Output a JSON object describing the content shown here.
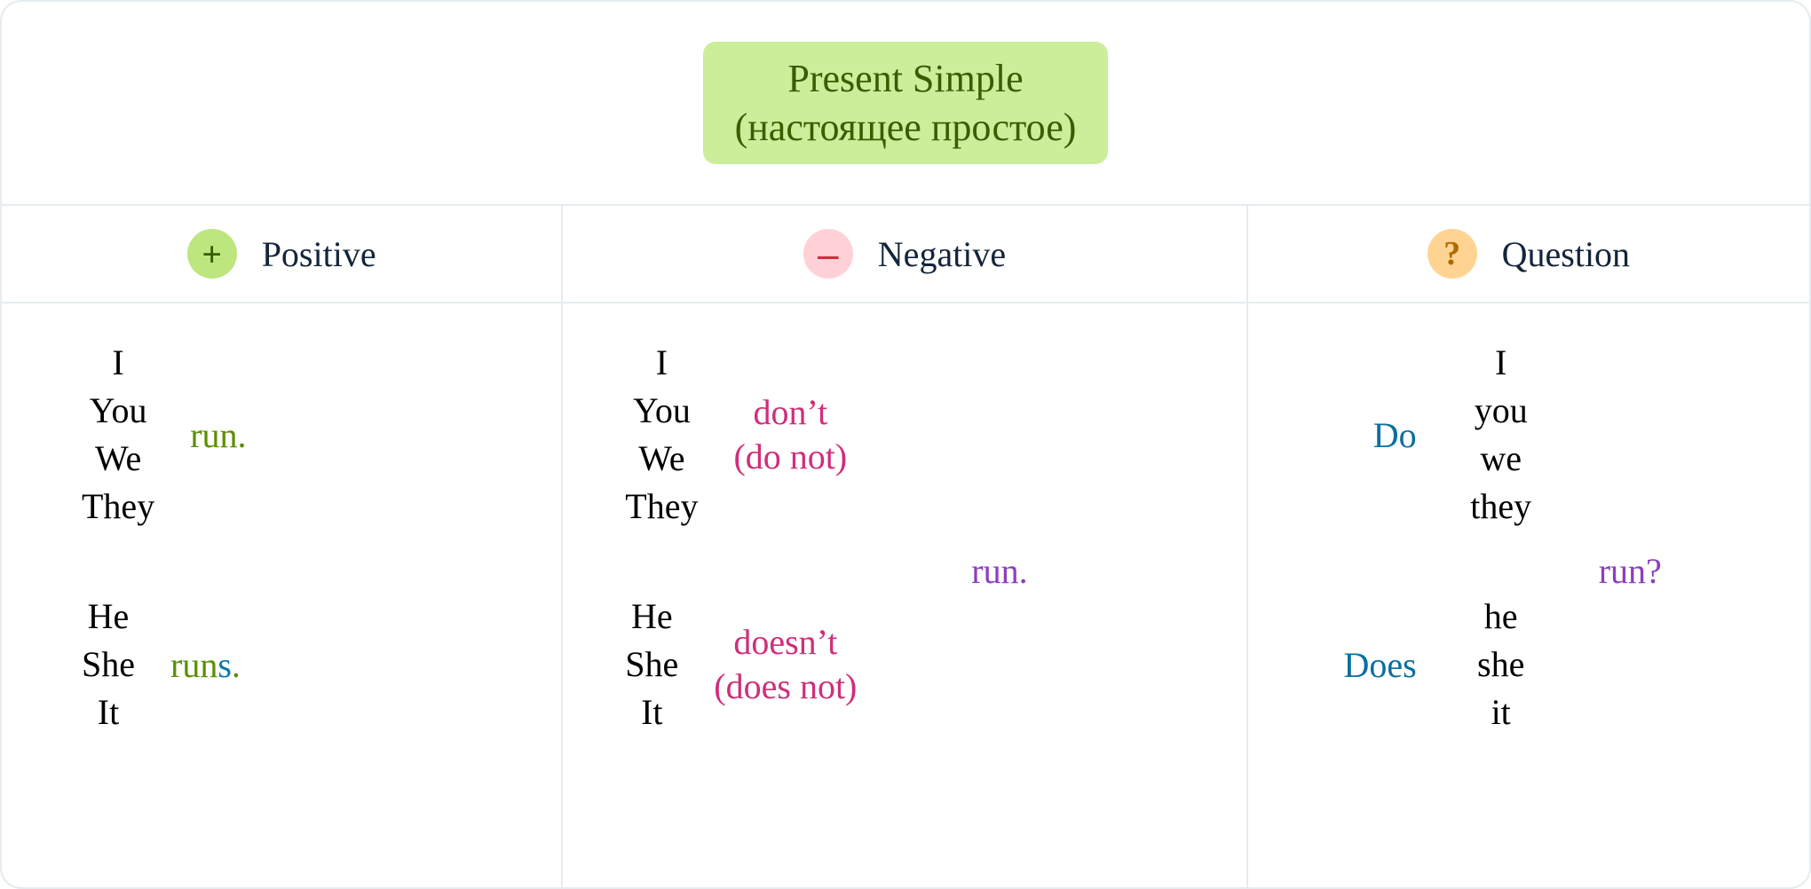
{
  "title": {
    "line1": "Present  Simple",
    "line2": "(настоящее простое)"
  },
  "colors": {
    "border": "#e5ecef",
    "title_bg": "#caee9a",
    "title_text": "#3a5d00",
    "header_text": "#14253a",
    "text": "#000000",
    "badge_plus_bg": "#bde67f",
    "badge_plus_fg": "#3a5d00",
    "badge_minus_bg": "#ffd1d6",
    "badge_minus_fg": "#d22e3f",
    "badge_q_bg": "#ffd493",
    "badge_q_fg": "#b06a00",
    "verb_green": "#5c8f00",
    "aux_pink": "#cf2e7a",
    "aux_blue": "#0a6f9e",
    "verb_purple": "#8b3fbf",
    "s_blue": "#0f79a8"
  },
  "columns": {
    "positive": {
      "badge": "+",
      "label": "Positive",
      "group1": {
        "pronouns": [
          "I",
          "You",
          "We",
          "They"
        ],
        "verb": "run."
      },
      "group2": {
        "pronouns": [
          "He",
          "She",
          "It"
        ],
        "verb_root": "run",
        "verb_s": "s",
        "verb_dot": "."
      }
    },
    "negative": {
      "badge": "–",
      "label": "Negative",
      "group1": {
        "pronouns": [
          "I",
          "You",
          "We",
          "They"
        ],
        "aux1": "don’t",
        "aux2": "(do not)"
      },
      "group2": {
        "pronouns": [
          "He",
          "She",
          "It"
        ],
        "aux1": "doesn’t",
        "aux2": "(does not)"
      },
      "verb": "run."
    },
    "question": {
      "badge": "?",
      "label": "Question",
      "group1": {
        "aux": "Do",
        "pronouns": [
          "I",
          "you",
          "we",
          "they"
        ]
      },
      "group2": {
        "aux": "Does",
        "pronouns": [
          "he",
          "she",
          "it"
        ]
      },
      "verb": "run?"
    }
  }
}
